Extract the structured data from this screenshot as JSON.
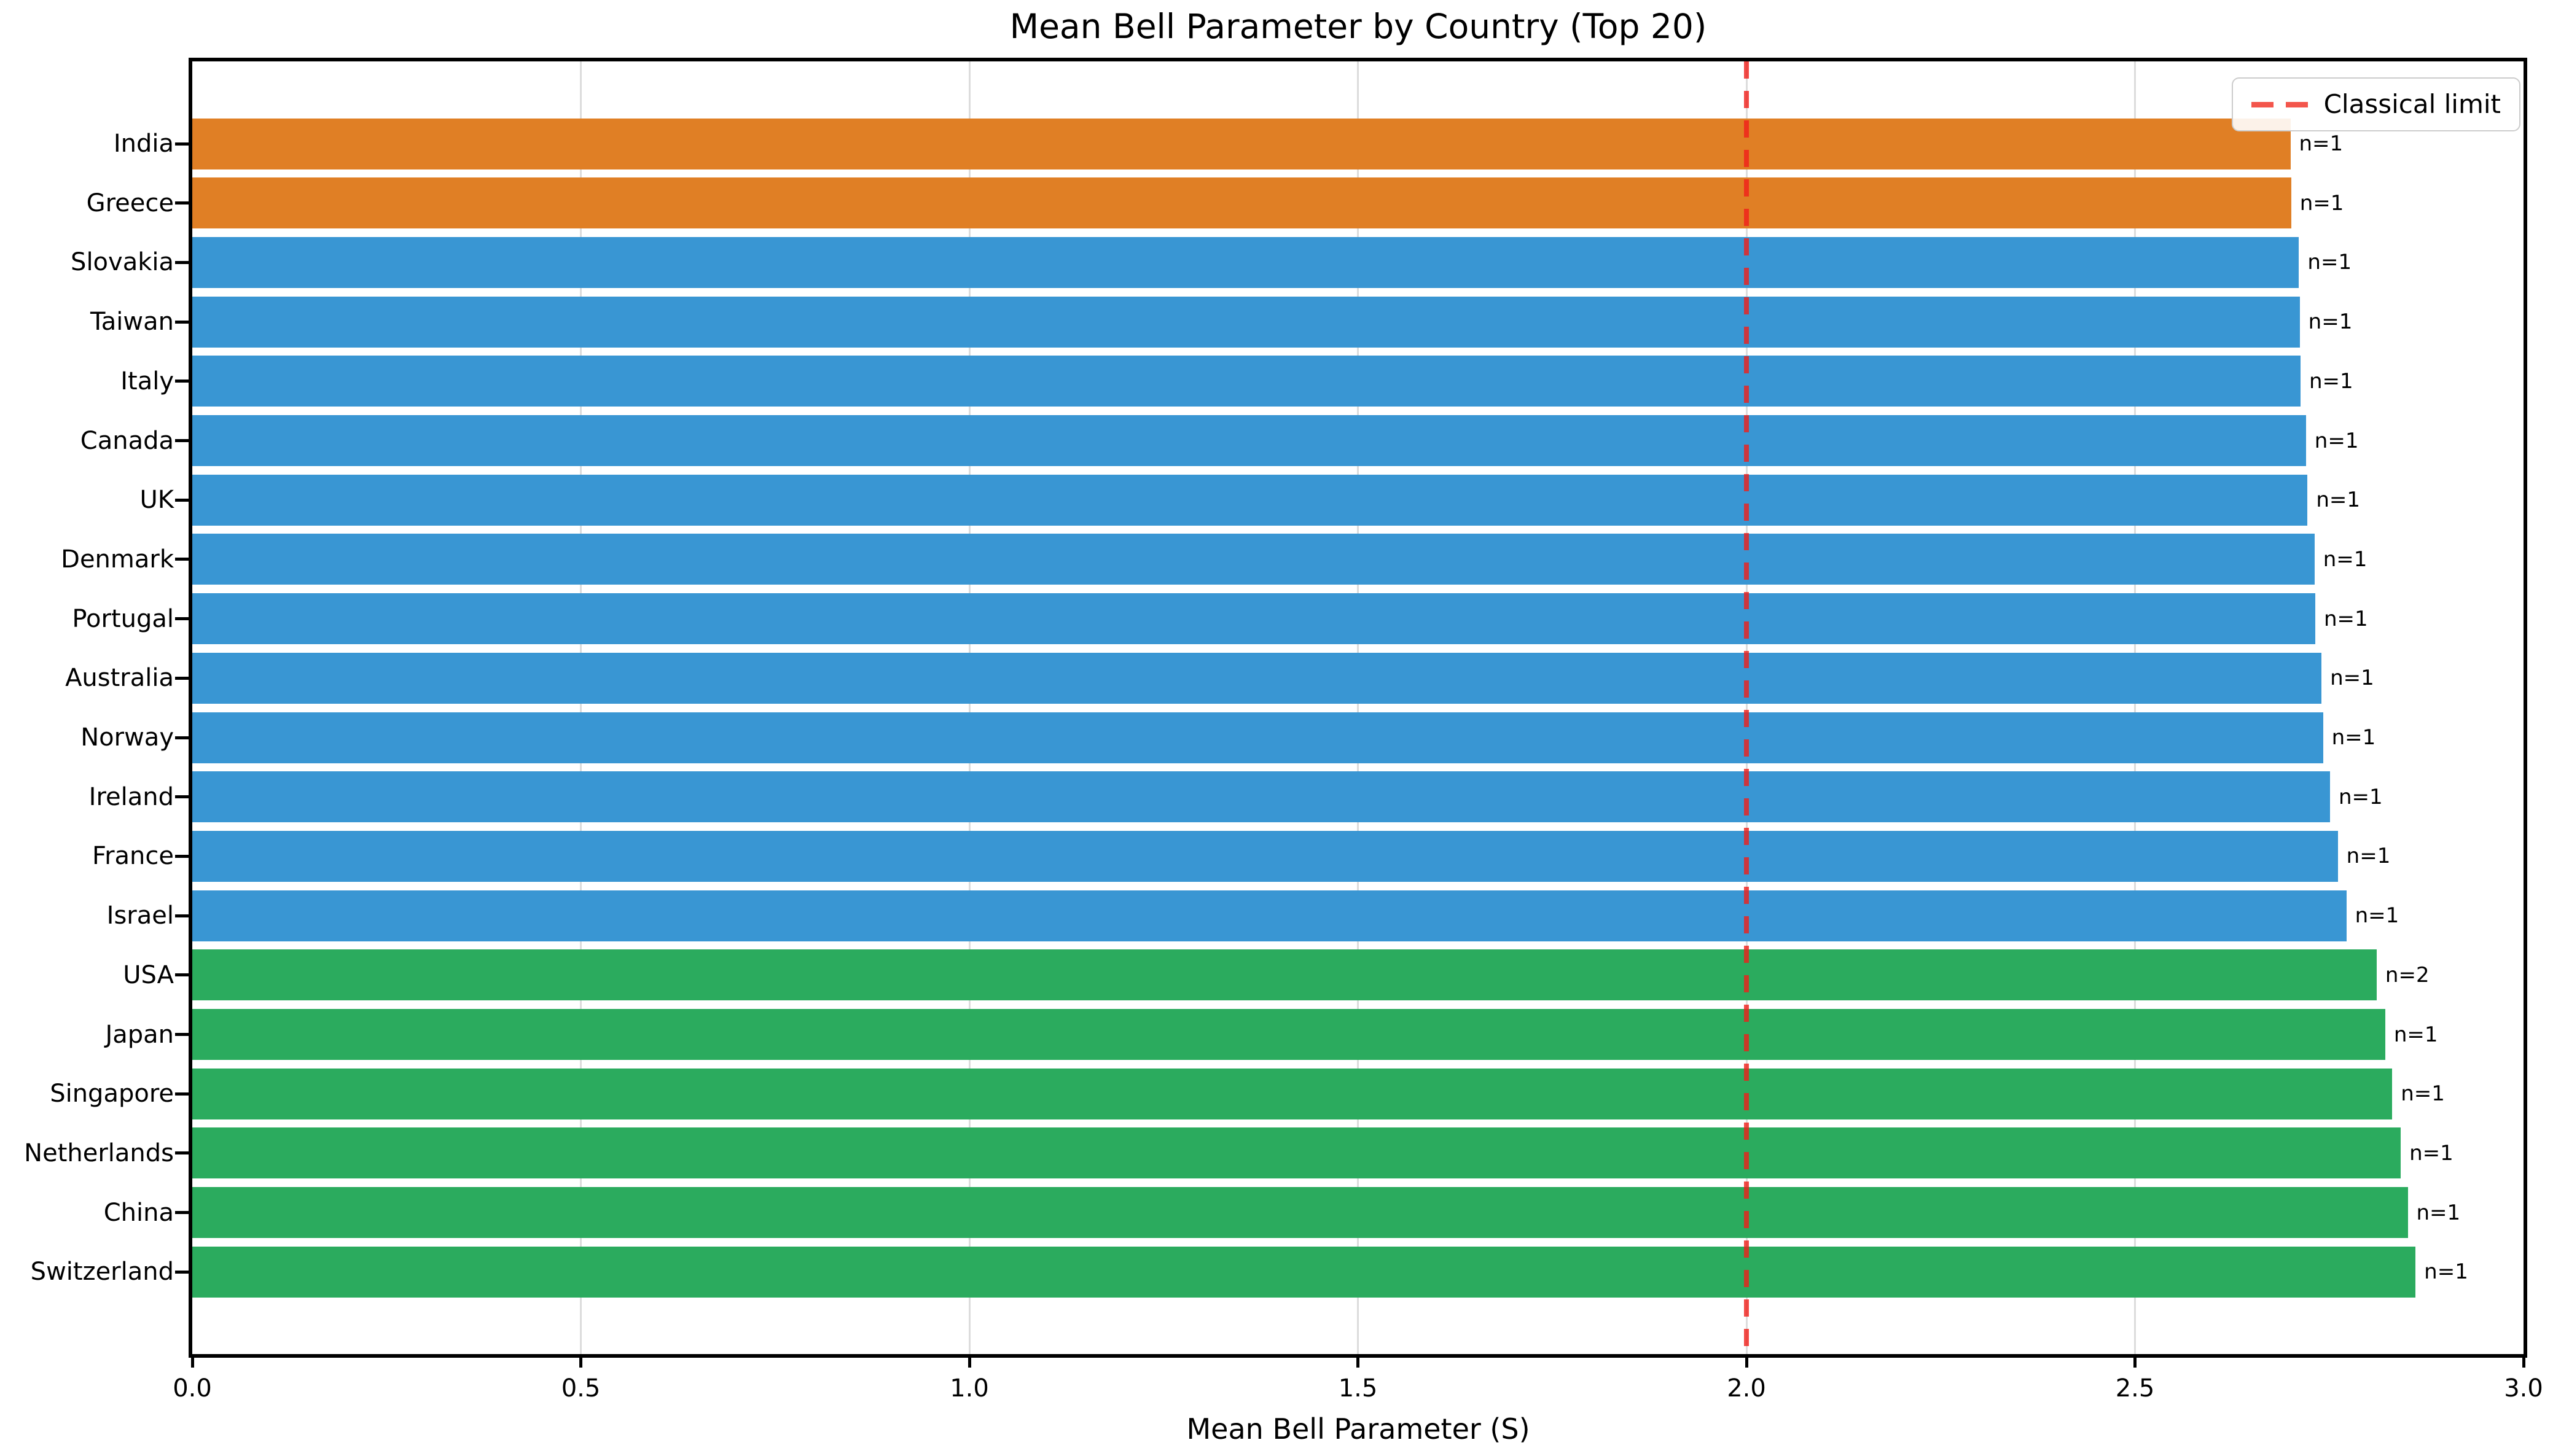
{
  "chart_data": {
    "type": "bar",
    "orientation": "horizontal",
    "title": "Mean Bell Parameter by Country (Top 20)",
    "xlabel": "Mean Bell Parameter (S)",
    "xlim": [
      0.0,
      3.0
    ],
    "x_ticks": [
      "0.0",
      "0.5",
      "1.0",
      "1.5",
      "2.0",
      "2.5",
      "3.0"
    ],
    "grid": true,
    "categories": [
      "India",
      "Greece",
      "Slovakia",
      "Taiwan",
      "Italy",
      "Canada",
      "UK",
      "Denmark",
      "Portugal",
      "Australia",
      "Norway",
      "Ireland",
      "France",
      "Israel",
      "USA",
      "Japan",
      "Singapore",
      "Netherlands",
      "China",
      "Switzerland"
    ],
    "values": [
      2.7,
      2.701,
      2.711,
      2.712,
      2.713,
      2.72,
      2.722,
      2.731,
      2.732,
      2.74,
      2.742,
      2.751,
      2.761,
      2.772,
      2.811,
      2.822,
      2.831,
      2.842,
      2.851,
      2.861
    ],
    "bar_labels": [
      "n=1",
      "n=1",
      "n=1",
      "n=1",
      "n=1",
      "n=1",
      "n=1",
      "n=1",
      "n=1",
      "n=1",
      "n=1",
      "n=1",
      "n=1",
      "n=1",
      "n=2",
      "n=1",
      "n=1",
      "n=1",
      "n=1",
      "n=1"
    ],
    "bar_colors": [
      "#e07f25",
      "#e07f25",
      "#3996d3",
      "#3996d3",
      "#3996d3",
      "#3996d3",
      "#3996d3",
      "#3996d3",
      "#3996d3",
      "#3996d3",
      "#3996d3",
      "#3996d3",
      "#3996d3",
      "#3996d3",
      "#2bab5e",
      "#2bab5e",
      "#2bab5e",
      "#2bab5e",
      "#2bab5e",
      "#2bab5e"
    ],
    "reference_line": {
      "x": 2.0,
      "label": "Classical limit",
      "style": "dashed",
      "color": "#f3564c"
    },
    "legend": {
      "position": "upper right",
      "entries": [
        "Classical limit"
      ]
    },
    "colors": {
      "orange_group": "#e07f25",
      "blue_group": "#3996d3",
      "green_group": "#2bab5e",
      "reference_red": "#f3564c",
      "grid": "#dcdcdc",
      "spine": "#000000"
    }
  }
}
